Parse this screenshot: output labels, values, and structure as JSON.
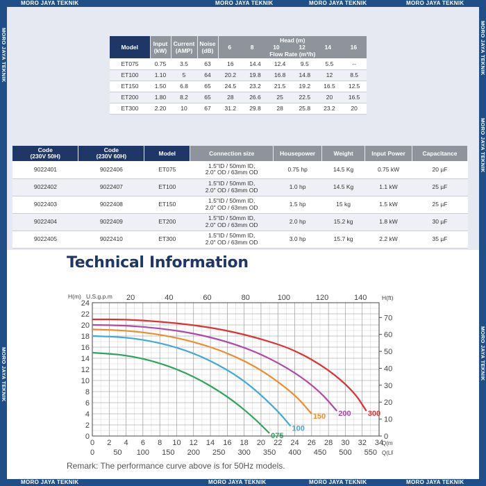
{
  "watermark": "MORO JAYA TEKNIK",
  "table1": {
    "headers": {
      "model": "Model",
      "input": "Input",
      "input_unit": "(kW)",
      "current": "Current",
      "current_unit": "(AMP)",
      "noise": "Noise",
      "noise_unit": "(dB)",
      "head": "Head (m)",
      "flow": "Flow Rate (m³/h)"
    },
    "head_values": [
      "6",
      "8",
      "10",
      "12",
      "14",
      "16"
    ],
    "rows": [
      {
        "model": "ET075",
        "input": "0.75",
        "current": "3.5",
        "noise": "63",
        "flows": [
          "16",
          "14.4",
          "12.4",
          "9.5",
          "5.5",
          "--"
        ]
      },
      {
        "model": "ET100",
        "input": "1.10",
        "current": "5",
        "noise": "64",
        "flows": [
          "20.2",
          "19.8",
          "16.8",
          "14.8",
          "12",
          "8.5"
        ]
      },
      {
        "model": "ET150",
        "input": "1.50",
        "current": "6.8",
        "noise": "65",
        "flows": [
          "24.5",
          "23.2",
          "21.5",
          "19.2",
          "16.5",
          "12.5"
        ]
      },
      {
        "model": "ET200",
        "input": "1.80",
        "current": "8.2",
        "noise": "65",
        "flows": [
          "28",
          "26.6",
          "25",
          "22.5",
          "20",
          "16.5"
        ]
      },
      {
        "model": "ET300",
        "input": "2.20",
        "current": "10",
        "noise": "67",
        "flows": [
          "31.2",
          "29.8",
          "28",
          "25.8",
          "23.2",
          "20"
        ]
      }
    ]
  },
  "table2": {
    "headers": {
      "code50": "Code",
      "code50_sub": "(230V 50H)",
      "code60": "Code",
      "code60_sub": "(230V 60H)",
      "model": "Model",
      "connection": "Connection size",
      "hp": "Housepower",
      "weight": "Weight",
      "power": "Input Power",
      "cap": "Capacitance"
    },
    "rows": [
      {
        "code50": "9022401",
        "code60": "9022406",
        "model": "ET075",
        "conn1": "1.5\"ID / 50mm ID,",
        "conn2": "2.0\" OD / 63mm OD",
        "hp": "0.75 hp",
        "weight": "14.5 Kg",
        "power": "0.75 kW",
        "cap": "20 µF"
      },
      {
        "code50": "9022402",
        "code60": "9022407",
        "model": "ET100",
        "conn1": "1.5\"ID / 50mm ID,",
        "conn2": "2.0\" OD / 63mm OD",
        "hp": "1.0 hp",
        "weight": "14.5 Kg",
        "power": "1.1 kW",
        "cap": "25 µF"
      },
      {
        "code50": "9022403",
        "code60": "9022408",
        "model": "ET150",
        "conn1": "1.5\"ID / 50mm ID,",
        "conn2": "2.0\" OD / 63mm OD",
        "hp": "1.5 hp",
        "weight": "15 kg",
        "power": "1.5 kW",
        "cap": "25 µF"
      },
      {
        "code50": "9022404",
        "code60": "9022409",
        "model": "ET200",
        "conn1": "1.5\"ID / 50mm ID,",
        "conn2": "2.0\" OD / 63mm OD",
        "hp": "2.0 hp",
        "weight": "15.2 kg",
        "power": "1.8 kW",
        "cap": "30 µF"
      },
      {
        "code50": "9022405",
        "code60": "9022410",
        "model": "ET300",
        "conn1": "1.5\"ID / 50mm ID,",
        "conn2": "2.0\" OD / 63mm OD",
        "hp": "3.0 hp",
        "weight": "15.7 kg",
        "power": "2.2 kW",
        "cap": "35 µF"
      }
    ]
  },
  "section_title": "Technical Information",
  "remark": "Remark: The performance curve above is for 50Hz models.",
  "chart_data": {
    "type": "line",
    "axes_labels": {
      "left": "H(m)",
      "top": "U.S.g.p.m",
      "right": "H(ft)",
      "bottom_m3h": "Q(m³/h)",
      "bottom_lpm": "Q(LPM)"
    },
    "left_ticks": [
      "0",
      "2",
      "4",
      "6",
      "8",
      "10",
      "12",
      "14",
      "16",
      "18",
      "20",
      "22",
      "24"
    ],
    "right_ticks": [
      "0",
      "10",
      "20",
      "30",
      "40",
      "50",
      "60",
      "70"
    ],
    "top_ticks": [
      "20",
      "40",
      "60",
      "80",
      "100",
      "120",
      "140"
    ],
    "q_ticks": [
      "0",
      "2",
      "4",
      "6",
      "8",
      "10",
      "12",
      "14",
      "16",
      "18",
      "20",
      "22",
      "24",
      "26",
      "28",
      "30",
      "32",
      "34"
    ],
    "lpm_ticks": [
      "0",
      "50",
      "100",
      "150",
      "200",
      "250",
      "300",
      "350",
      "400",
      "450",
      "500",
      "550"
    ],
    "xlim": [
      0,
      34
    ],
    "ylim": [
      0,
      24
    ],
    "grid": true,
    "series": [
      {
        "name": "075",
        "color": "#2aa55a",
        "points": [
          [
            0,
            15
          ],
          [
            4,
            14.6
          ],
          [
            8,
            13.2
          ],
          [
            12,
            10.8
          ],
          [
            16,
            7.2
          ],
          [
            19,
            3.5
          ],
          [
            21,
            0.5
          ]
        ]
      },
      {
        "name": "100",
        "color": "#3fa9d6",
        "points": [
          [
            0,
            18
          ],
          [
            4,
            17.8
          ],
          [
            8,
            16.8
          ],
          [
            12,
            15
          ],
          [
            16,
            12
          ],
          [
            19,
            8.8
          ],
          [
            22,
            4.5
          ],
          [
            23.5,
            1.8
          ]
        ]
      },
      {
        "name": "150",
        "color": "#f08c28",
        "points": [
          [
            0,
            19.2
          ],
          [
            4,
            19.0
          ],
          [
            8,
            18.3
          ],
          [
            12,
            17
          ],
          [
            16,
            15
          ],
          [
            20,
            12
          ],
          [
            24,
            7.5
          ],
          [
            26,
            4
          ]
        ]
      },
      {
        "name": "200",
        "color": "#b048a8",
        "points": [
          [
            0,
            20
          ],
          [
            4,
            19.9
          ],
          [
            8,
            19.4
          ],
          [
            12,
            18.5
          ],
          [
            16,
            17
          ],
          [
            20,
            14.8
          ],
          [
            24,
            11.5
          ],
          [
            27,
            8
          ],
          [
            29,
            4.5
          ]
        ]
      },
      {
        "name": "300",
        "color": "#e03030",
        "points": [
          [
            0,
            21
          ],
          [
            4,
            21
          ],
          [
            8,
            20.6
          ],
          [
            12,
            20
          ],
          [
            16,
            19
          ],
          [
            20,
            17.5
          ],
          [
            24,
            15.5
          ],
          [
            28,
            12
          ],
          [
            31,
            8
          ],
          [
            32.5,
            4.5
          ]
        ]
      }
    ]
  }
}
